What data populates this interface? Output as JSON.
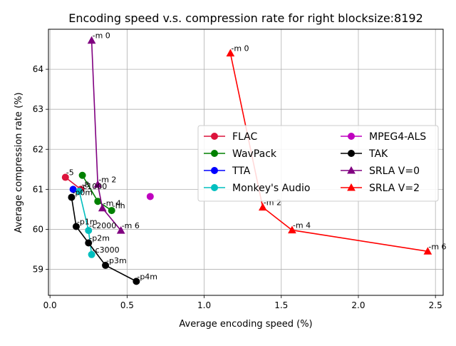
{
  "chart_data": {
    "type": "line",
    "title": "Encoding speed v.s. compression rate for right blocksize:8192",
    "xlabel": "Average encoding speed (%)",
    "ylabel": "Average compression rate (%)",
    "xlim": [
      -0.01,
      2.55
    ],
    "ylim": [
      58.35,
      65.0
    ],
    "xticks": [
      0.0,
      0.5,
      1.0,
      1.5,
      2.0,
      2.5
    ],
    "xtick_labels": [
      "0.0",
      "0.5",
      "1.0",
      "1.5",
      "2.0",
      "2.5"
    ],
    "yticks": [
      59,
      60,
      61,
      62,
      63,
      64
    ],
    "ytick_labels": [
      "59",
      "60",
      "61",
      "62",
      "63",
      "64"
    ],
    "grid": true,
    "legend_position": "center-right",
    "series": [
      {
        "name": "FLAC",
        "color": "#dc143c",
        "marker": "circle",
        "points": [
          {
            "x": 0.1,
            "y": 61.3,
            "label": "-5"
          },
          {
            "x": 0.2,
            "y": 61.0,
            "label": "-8"
          }
        ]
      },
      {
        "name": "WavPack",
        "color": "#008000",
        "marker": "circle",
        "points": [
          {
            "x": 0.21,
            "y": 61.35,
            "label": ""
          },
          {
            "x": 0.31,
            "y": 60.7,
            "label": ""
          },
          {
            "x": 0.4,
            "y": 60.47,
            "label": "-hh"
          }
        ]
      },
      {
        "name": "TTA",
        "color": "#0000ff",
        "marker": "circle",
        "points": [
          {
            "x": 0.15,
            "y": 61.0,
            "label": ""
          }
        ]
      },
      {
        "name": "Monkey's Audio",
        "color": "#00bfbf",
        "marker": "circle",
        "points": [
          {
            "x": 0.19,
            "y": 60.95,
            "label": "-c1000"
          },
          {
            "x": 0.25,
            "y": 59.97,
            "label": "-c2000"
          },
          {
            "x": 0.27,
            "y": 59.37,
            "label": "-c3000"
          }
        ]
      },
      {
        "name": "MPEG4-ALS",
        "color": "#bf00bf",
        "marker": "circle",
        "points": [
          {
            "x": 0.65,
            "y": 60.82,
            "label": ""
          }
        ]
      },
      {
        "name": "TAK",
        "color": "#000000",
        "marker": "circle",
        "points": [
          {
            "x": 0.14,
            "y": 60.8,
            "label": "-p0m"
          },
          {
            "x": 0.17,
            "y": 60.07,
            "label": "-p1m"
          },
          {
            "x": 0.25,
            "y": 59.66,
            "label": "-p2m"
          },
          {
            "x": 0.36,
            "y": 59.1,
            "label": "-p3m"
          },
          {
            "x": 0.56,
            "y": 58.7,
            "label": "-p4m"
          }
        ]
      },
      {
        "name": "SRLA V=0",
        "color": "#800080",
        "marker": "triangle",
        "points": [
          {
            "x": 0.27,
            "y": 64.72,
            "label": "-m 0"
          },
          {
            "x": 0.31,
            "y": 61.12,
            "label": "-m 2"
          },
          {
            "x": 0.34,
            "y": 60.53,
            "label": "-m 4"
          },
          {
            "x": 0.46,
            "y": 59.97,
            "label": "-m 6"
          }
        ]
      },
      {
        "name": "SRLA V=2",
        "color": "#ff0000",
        "marker": "triangle",
        "points": [
          {
            "x": 1.17,
            "y": 64.4,
            "label": "-m 0"
          },
          {
            "x": 1.38,
            "y": 60.55,
            "label": "-m 2"
          },
          {
            "x": 1.57,
            "y": 59.98,
            "label": "-m 4"
          },
          {
            "x": 2.45,
            "y": 59.45,
            "label": "-m 6"
          }
        ]
      }
    ]
  }
}
